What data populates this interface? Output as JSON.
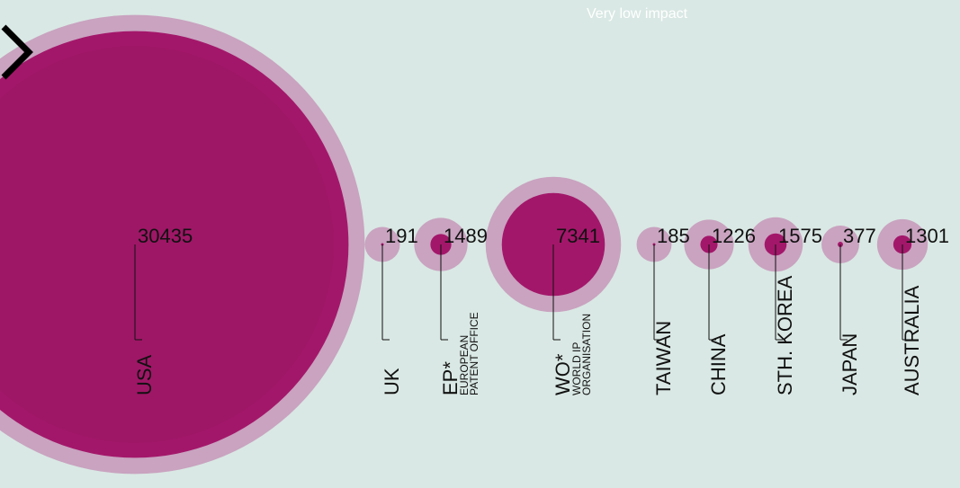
{
  "chart_data": {
    "type": "bubble",
    "subtitle": "Very low impact",
    "categories": [
      "USA",
      "UK",
      "EP*",
      "WO*",
      "TAIWAN",
      "CHINA",
      "STH. KOREA",
      "JAPAN",
      "AUSTRALIA"
    ],
    "values": [
      30435,
      191,
      1489,
      7341,
      185,
      1226,
      1575,
      377,
      1301
    ],
    "annotations": [
      {
        "category": "EP*",
        "lines": [
          "EUROPEAN",
          "PATENT OFFICE"
        ]
      },
      {
        "category": "WO*",
        "lines": [
          "WORLD IP",
          "ORGANISATION"
        ]
      }
    ],
    "color": "#a3176a",
    "ring_color": "#c9a3c0"
  }
}
